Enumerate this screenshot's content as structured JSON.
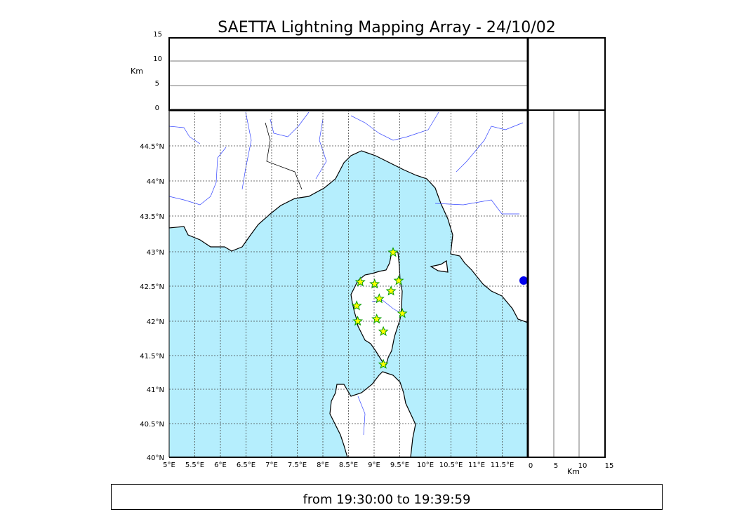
{
  "title": "SAETTA Lightning Mapping Array - 24/10/02",
  "time_range": "from 19:30:00 to 19:39:59",
  "colors": {
    "sea": "#b5eefd",
    "land": "#ffffff",
    "rivers": "#3344ff",
    "marker_fill": "#ffff00",
    "marker_edge": "#009900"
  },
  "altitude_axis": {
    "label": "Km",
    "ticks": [
      "0",
      "5",
      "10",
      "15"
    ]
  },
  "side_axis": {
    "label": "Km",
    "ticks": [
      "0",
      "5",
      "10",
      "15"
    ]
  },
  "map": {
    "lon_range": [
      5,
      12
    ],
    "lat_range": [
      40,
      45
    ],
    "lon_ticks": [
      "5°E",
      "5.5°E",
      "6°E",
      "6.5°E",
      "7°E",
      "7.5°E",
      "8°E",
      "8.5°E",
      "9°E",
      "9.5°E",
      "10°E",
      "10.5°E",
      "11°E",
      "11.5°E"
    ],
    "lat_ticks": [
      "40°N",
      "40.5°N",
      "41°N",
      "41.5°N",
      "42°N",
      "42.5°N",
      "43°N",
      "43.5°N",
      "44°N",
      "44.5°N"
    ],
    "grid": true,
    "marker_icon": "star-icon"
  },
  "chart_data": {
    "type": "scatter",
    "title": "SAETTA Lightning Mapping Array - 24/10/02",
    "xlim": [
      5,
      12
    ],
    "ylim": [
      40,
      45
    ],
    "stations": [
      {
        "lon": 9.37,
        "lat": 42.99
      },
      {
        "lon": 8.73,
        "lat": 42.56
      },
      {
        "lon": 9.01,
        "lat": 42.53
      },
      {
        "lon": 9.48,
        "lat": 42.58
      },
      {
        "lon": 9.33,
        "lat": 42.43
      },
      {
        "lon": 9.1,
        "lat": 42.32
      },
      {
        "lon": 8.66,
        "lat": 42.22
      },
      {
        "lon": 9.55,
        "lat": 42.11
      },
      {
        "lon": 9.05,
        "lat": 42.03
      },
      {
        "lon": 8.68,
        "lat": 42.0
      },
      {
        "lon": 9.18,
        "lat": 41.85
      },
      {
        "lon": 9.18,
        "lat": 41.37
      }
    ]
  }
}
